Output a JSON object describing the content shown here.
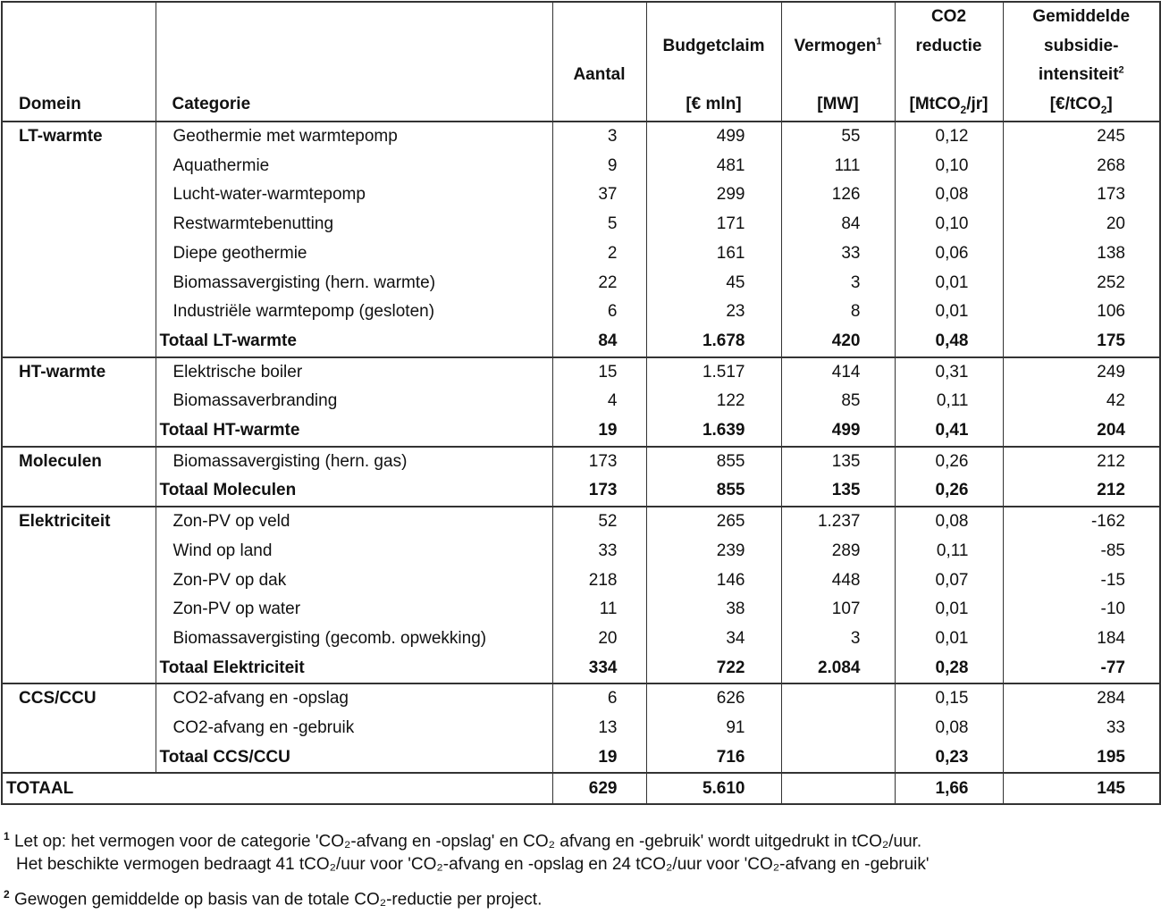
{
  "headers": {
    "domein": "Domein",
    "categorie": "Categorie",
    "aantal": "Aantal",
    "budget": "Budgetclaim",
    "budget_unit": "[€ mln]",
    "vermogen": "Vermogen",
    "vermogen_sup": "1",
    "vermogen_unit": "[MW]",
    "co2_1": "CO2",
    "co2_2": "reductie",
    "co2_unit_a": "[MtCO",
    "co2_unit_sub": "2",
    "co2_unit_b": "/jr]",
    "gem_1": "Gemiddelde",
    "gem_2": "subsidie-",
    "gem_3": "intensiteit",
    "gem_sup": "2",
    "gem_unit_a": "[€/tCO",
    "gem_unit_sub": "2",
    "gem_unit_b": "]"
  },
  "groups": [
    {
      "domain": "LT-warmte",
      "rows": [
        [
          "Geothermie met warmtepomp",
          "3",
          "499",
          "55",
          "0,12",
          "245"
        ],
        [
          "Aquathermie",
          "9",
          "481",
          "111",
          "0,10",
          "268"
        ],
        [
          "Lucht-water-warmtepomp",
          "37",
          "299",
          "126",
          "0,08",
          "173"
        ],
        [
          "Restwarmtebenutting",
          "5",
          "171",
          "84",
          "0,10",
          "20"
        ],
        [
          "Diepe geothermie",
          "2",
          "161",
          "33",
          "0,06",
          "138"
        ],
        [
          "Biomassavergisting (hern. warmte)",
          "22",
          "45",
          "3",
          "0,01",
          "252"
        ],
        [
          "Industriële warmtepomp (gesloten)",
          "6",
          "23",
          "8",
          "0,01",
          "106"
        ]
      ],
      "total": [
        "Totaal LT-warmte",
        "84",
        "1.678",
        "420",
        "0,48",
        "175"
      ]
    },
    {
      "domain": "HT-warmte",
      "rows": [
        [
          "Elektrische boiler",
          "15",
          "1.517",
          "414",
          "0,31",
          "249"
        ],
        [
          "Biomassaverbranding",
          "4",
          "122",
          "85",
          "0,11",
          "42"
        ]
      ],
      "total": [
        "Totaal HT-warmte",
        "19",
        "1.639",
        "499",
        "0,41",
        "204"
      ]
    },
    {
      "domain": "Moleculen",
      "rows": [
        [
          "Biomassavergisting (hern. gas)",
          "173",
          "855",
          "135",
          "0,26",
          "212"
        ]
      ],
      "total": [
        "Totaal Moleculen",
        "173",
        "855",
        "135",
        "0,26",
        "212"
      ]
    },
    {
      "domain": "Elektriciteit",
      "rows": [
        [
          "Zon-PV op veld",
          "52",
          "265",
          "1.237",
          "0,08",
          "-162"
        ],
        [
          "Wind op land",
          "33",
          "239",
          "289",
          "0,11",
          "-85"
        ],
        [
          "Zon-PV op dak",
          "218",
          "146",
          "448",
          "0,07",
          "-15"
        ],
        [
          "Zon-PV op water",
          "11",
          "38",
          "107",
          "0,01",
          "-10"
        ],
        [
          "Biomassavergisting (gecomb. opwekking)",
          "20",
          "34",
          "3",
          "0,01",
          "184"
        ]
      ],
      "total": [
        "Totaal Elektriciteit",
        "334",
        "722",
        "2.084",
        "0,28",
        "-77"
      ]
    },
    {
      "domain": "CCS/CCU",
      "rows": [
        [
          "CO2-afvang en -opslag",
          "6",
          "626",
          "",
          "0,15",
          "284"
        ],
        [
          "CO2-afvang en -gebruik",
          "13",
          "91",
          "",
          "0,08",
          "33"
        ]
      ],
      "total": [
        "Totaal CCS/CCU",
        "19",
        "716",
        "",
        "0,23",
        "195"
      ]
    }
  ],
  "grand_total": [
    "TOTAAL",
    "629",
    "5.610",
    "",
    "1,66",
    "145"
  ],
  "footnotes": {
    "f1_mark": "1",
    "f1_line1": "Let op: het vermogen voor de categorie 'CO₂-afvang en -opslag' en CO₂ afvang en -gebruik' wordt uitgedrukt in tCO₂/uur.",
    "f1_line2": "Het beschikte vermogen bedraagt  41  tCO₂/uur voor 'CO₂-afvang en -opslag en 24 tCO₂/uur voor 'CO₂-afvang en -gebruik'",
    "f2_mark": "2",
    "f2_line": "Gewogen gemiddelde op basis van de totale CO₂-reductie per project."
  }
}
